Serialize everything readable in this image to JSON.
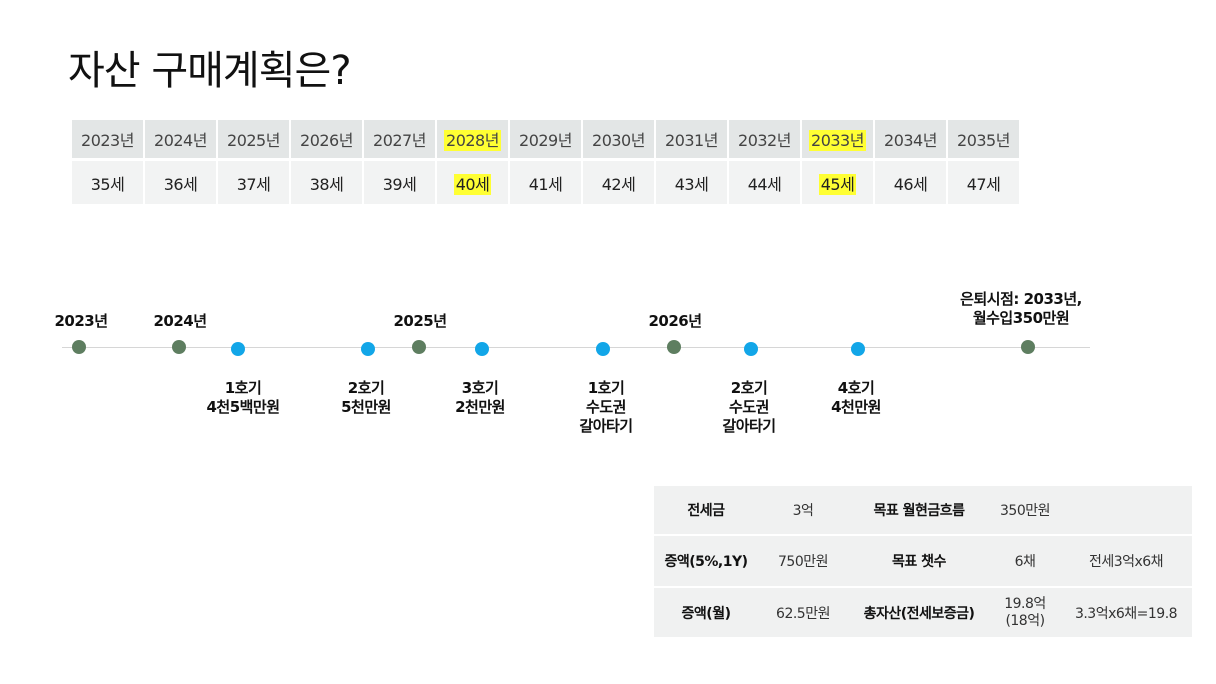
{
  "title": "자산 구매계획은?",
  "year_table": {
    "years": [
      "2023년",
      "2024년",
      "2025년",
      "2026년",
      "2027년",
      "2028년",
      "2029년",
      "2030년",
      "2031년",
      "2032년",
      "2033년",
      "2034년",
      "2035년"
    ],
    "ages": [
      "35세",
      "36세",
      "37세",
      "38세",
      "39세",
      "40세",
      "41세",
      "42세",
      "43세",
      "44세",
      "45세",
      "46세",
      "47세"
    ],
    "highlight_color": "#ffff33"
  },
  "timeline": {
    "years": [
      "2023년",
      "2024년",
      "2025년",
      "2026년"
    ],
    "events": [
      {
        "line1": "1호기",
        "line2": "4천5백만원",
        "line3": ""
      },
      {
        "line1": "2호기",
        "line2": "5천만원",
        "line3": ""
      },
      {
        "line1": "3호기",
        "line2": "2천만원",
        "line3": ""
      },
      {
        "line1": "1호기",
        "line2": "수도권",
        "line3": "갈아타기"
      },
      {
        "line1": "2호기",
        "line2": "수도권",
        "line3": "갈아타기"
      },
      {
        "line1": "4호기",
        "line2": "4천만원",
        "line3": ""
      }
    ],
    "retire": {
      "line1": "은퇴시점: 2033년,",
      "line2": "월수입350만원"
    },
    "colors": {
      "year_dot": "#5e7e60",
      "event_dot": "#12a6e8"
    }
  },
  "summary": {
    "rows": [
      [
        "전세금",
        "3억",
        "목표 월현금흐름",
        "350만원",
        ""
      ],
      [
        "증액(5%,1Y)",
        "750만원",
        "목표 챗수",
        "6채",
        "전세3억x6채"
      ],
      [
        "증액(월)",
        "62.5만원",
        "총자산(전세보증금)",
        "19.8억\n(18억)",
        "3.3억x6채=19.8"
      ]
    ]
  }
}
